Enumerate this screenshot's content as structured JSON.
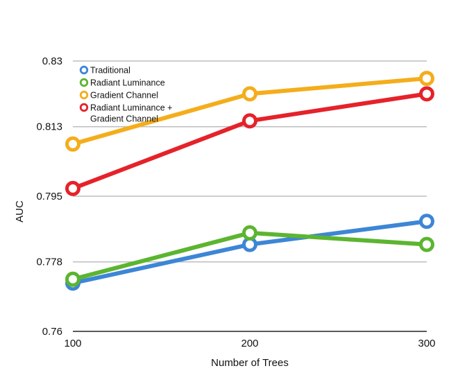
{
  "chart_data": {
    "type": "line",
    "title": "",
    "xlabel": "Number of Trees",
    "ylabel": "AUC",
    "x": [
      100,
      200,
      300
    ],
    "x_tick_labels": [
      "100",
      "200",
      "300"
    ],
    "y_ticks": [
      0.76,
      0.778,
      0.795,
      0.813,
      0.83
    ],
    "y_tick_labels": [
      "0.76",
      "0.778",
      "0.795",
      "0.813",
      "0.83"
    ],
    "ylim": [
      0.76,
      0.83
    ],
    "grid": "horizontal",
    "legend_position": "top-left",
    "series": [
      {
        "name": "Traditional",
        "color": "#3d86d6",
        "values": [
          0.7725,
          0.7825,
          0.7885
        ]
      },
      {
        "name": "Radiant Luminance",
        "color": "#5cb530",
        "values": [
          0.7735,
          0.7855,
          0.7825
        ]
      },
      {
        "name": "Gradient Channel",
        "color": "#f4ad1b",
        "values": [
          0.8085,
          0.8215,
          0.8255
        ]
      },
      {
        "name": "Radiant Luminance + Gradient Channel",
        "legend_lines": [
          "Radiant Luminance +",
          "Gradient Channel"
        ],
        "color": "#e5222a",
        "values": [
          0.797,
          0.8145,
          0.8215
        ]
      }
    ]
  }
}
